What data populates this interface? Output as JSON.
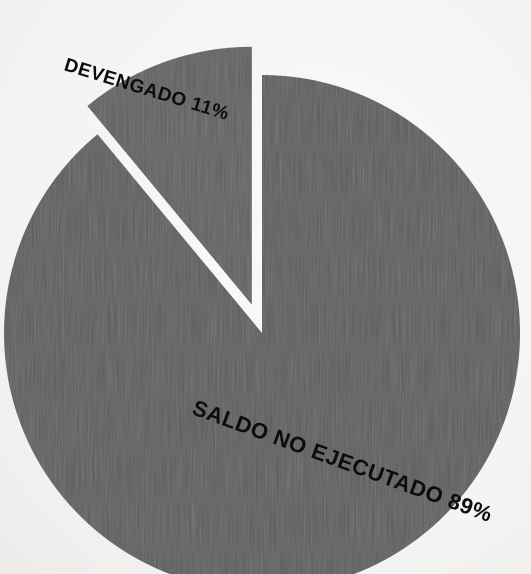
{
  "chart_data": {
    "type": "pie",
    "slices": [
      {
        "label": "DEVENGADO 11%",
        "value": 11,
        "exploded": true,
        "color": "#5f605f"
      },
      {
        "label": "SALDO NO EJECUTADO 89%",
        "value": 89,
        "exploded": false,
        "color": "#5c5d5c"
      }
    ],
    "start_angle_deg": 0,
    "direction": "counterclockwise"
  }
}
